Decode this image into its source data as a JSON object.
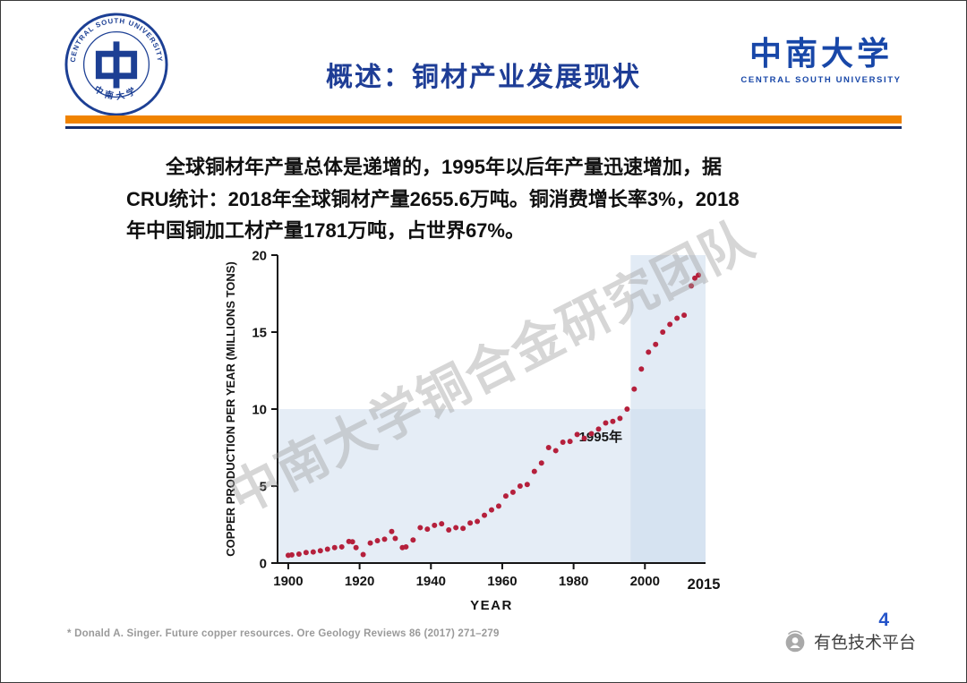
{
  "colors": {
    "title_blue": "#1e3d96",
    "orange_bar": "#f08300",
    "navy_bar": "#152f6e",
    "logo_blue": "#1c3f94",
    "dot_red": "#b5203c",
    "page_number_blue": "#2453c9"
  },
  "header": {
    "title": "概述：铜材产业发展现状"
  },
  "logos": {
    "seal_arc_text": "CENTRAL SOUTH UNIVERSITY",
    "seal_bottom_text": "中南大学",
    "wordmark_chinese": "中南大学",
    "wordmark_english": "CENTRAL SOUTH UNIVERSITY"
  },
  "body": {
    "lines": [
      "全球铜材年产量总体是递增的，1995年以后年产量迅速增加，据",
      "CRU统计：2018年全球铜材产量2655.6万吨。铜消费增长率3%，2018",
      "年中国铜加工材产量1781万吨，占世界67%。"
    ]
  },
  "watermark_text": "中南大学铜合金研究团队",
  "footer": {
    "citation": "* Donald A. Singer. Future copper resources. Ore Geology Reviews 86 (2017) 271–279",
    "platform_label": "有色技术平台",
    "page_number": "4"
  },
  "chart_data": {
    "type": "scatter",
    "title": "",
    "xlabel": "YEAR",
    "ylabel": "COPPER PRODUCTION PER YEAR (MILLIONS TONS)",
    "xlim": [
      1897,
      2017
    ],
    "ylim": [
      0,
      20
    ],
    "x_ticks": [
      1900,
      1920,
      1940,
      1960,
      1980,
      2000
    ],
    "x_end_tick": 2015,
    "y_ticks": [
      0,
      5,
      10,
      15,
      20
    ],
    "grid": false,
    "legend": "none",
    "point_color": "#b5203c",
    "annotation": {
      "text": "1995年",
      "x": 1981.5,
      "y": 7.9
    },
    "shaded_regions": [
      {
        "x": [
          1897,
          2017
        ],
        "y": [
          0,
          10
        ],
        "fill": "rgba(203,219,237,0.50)"
      },
      {
        "x": [
          1996,
          2017
        ],
        "y": [
          0,
          20
        ],
        "fill": "rgba(203,219,237,0.55)"
      }
    ],
    "points": [
      [
        1900,
        0.5
      ],
      [
        1901,
        0.53
      ],
      [
        1903,
        0.58
      ],
      [
        1905,
        0.68
      ],
      [
        1907,
        0.72
      ],
      [
        1909,
        0.8
      ],
      [
        1911,
        0.9
      ],
      [
        1913,
        1.0
      ],
      [
        1915,
        1.05
      ],
      [
        1917,
        1.4
      ],
      [
        1918,
        1.38
      ],
      [
        1919,
        1.0
      ],
      [
        1921,
        0.55
      ],
      [
        1923,
        1.3
      ],
      [
        1925,
        1.45
      ],
      [
        1927,
        1.55
      ],
      [
        1929,
        2.05
      ],
      [
        1930,
        1.6
      ],
      [
        1932,
        1.0
      ],
      [
        1933,
        1.05
      ],
      [
        1935,
        1.5
      ],
      [
        1937,
        2.3
      ],
      [
        1939,
        2.2
      ],
      [
        1941,
        2.45
      ],
      [
        1943,
        2.55
      ],
      [
        1945,
        2.15
      ],
      [
        1947,
        2.3
      ],
      [
        1949,
        2.25
      ],
      [
        1951,
        2.6
      ],
      [
        1953,
        2.7
      ],
      [
        1955,
        3.1
      ],
      [
        1957,
        3.45
      ],
      [
        1959,
        3.7
      ],
      [
        1961,
        4.35
      ],
      [
        1963,
        4.6
      ],
      [
        1965,
        5.0
      ],
      [
        1967,
        5.1
      ],
      [
        1969,
        5.95
      ],
      [
        1971,
        6.5
      ],
      [
        1973,
        7.5
      ],
      [
        1975,
        7.3
      ],
      [
        1977,
        7.85
      ],
      [
        1979,
        7.9
      ],
      [
        1981,
        8.35
      ],
      [
        1983,
        8.1
      ],
      [
        1985,
        8.4
      ],
      [
        1987,
        8.7
      ],
      [
        1989,
        9.1
      ],
      [
        1991,
        9.2
      ],
      [
        1993,
        9.4
      ],
      [
        1995,
        10.0
      ],
      [
        1997,
        11.3
      ],
      [
        1999,
        12.6
      ],
      [
        2001,
        13.7
      ],
      [
        2003,
        14.2
      ],
      [
        2005,
        15.0
      ],
      [
        2007,
        15.5
      ],
      [
        2009,
        15.9
      ],
      [
        2011,
        16.1
      ],
      [
        2013,
        18.0
      ],
      [
        2014,
        18.5
      ],
      [
        2015,
        18.7
      ]
    ]
  }
}
